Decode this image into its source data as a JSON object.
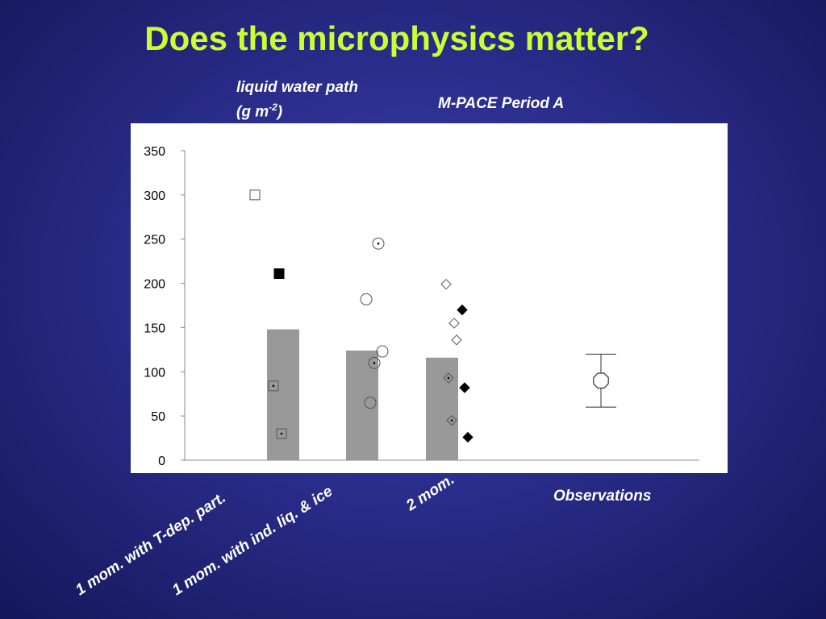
{
  "slide": {
    "title": "Does the microphysics matter?"
  },
  "chart_data": {
    "type": "bar",
    "ylabel_line1": "liquid water path",
    "ylabel_line2_base": "(g m",
    "ylabel_line2_sup": "-2",
    "ylabel_line2_end": ")",
    "subtitle": "M-PACE Period A",
    "ylim": [
      0,
      350
    ],
    "yticks": [
      0,
      50,
      100,
      150,
      200,
      250,
      300,
      350
    ],
    "grid": false,
    "categories": [
      "1 mom. with T-dep. part.",
      "1 mom. with ind. liq. & ice",
      "2 mom.",
      "Observations"
    ],
    "bar_values": [
      148,
      124,
      116,
      null
    ],
    "bar_color": "#999999",
    "markers": [
      {
        "category": 0,
        "offset": -0.35,
        "y": 300,
        "shape": "square-open"
      },
      {
        "category": 0,
        "offset": -0.12,
        "y": 84,
        "shape": "square-dot"
      },
      {
        "category": 0,
        "offset": -0.02,
        "y": 30,
        "shape": "square-dot"
      },
      {
        "category": 0,
        "offset": -0.05,
        "y": 211,
        "shape": "square-filled"
      },
      {
        "category": 1,
        "offset": 0.2,
        "y": 245,
        "shape": "circle-dot"
      },
      {
        "category": 1,
        "offset": 0.05,
        "y": 182,
        "shape": "circle-open"
      },
      {
        "category": 1,
        "offset": 0.25,
        "y": 123,
        "shape": "circle-open"
      },
      {
        "category": 1,
        "offset": 0.15,
        "y": 110,
        "shape": "circle-dot"
      },
      {
        "category": 1,
        "offset": 0.1,
        "y": 65,
        "shape": "circle-open"
      },
      {
        "category": 2,
        "offset": 0.05,
        "y": 199,
        "shape": "diamond-open"
      },
      {
        "category": 2,
        "offset": 0.15,
        "y": 155,
        "shape": "diamond-open"
      },
      {
        "category": 2,
        "offset": 0.18,
        "y": 136,
        "shape": "diamond-open"
      },
      {
        "category": 2,
        "offset": 0.08,
        "y": 93,
        "shape": "diamond-dot"
      },
      {
        "category": 2,
        "offset": 0.12,
        "y": 45,
        "shape": "diamond-dot"
      },
      {
        "category": 2,
        "offset": 0.25,
        "y": 170,
        "shape": "diamond-filled"
      },
      {
        "category": 2,
        "offset": 0.28,
        "y": 82,
        "shape": "diamond-filled"
      },
      {
        "category": 2,
        "offset": 0.32,
        "y": 26,
        "shape": "diamond-filled"
      }
    ],
    "observation": {
      "category": 3,
      "value": 90,
      "low": 60,
      "high": 120,
      "shape": "octagon-open"
    }
  }
}
